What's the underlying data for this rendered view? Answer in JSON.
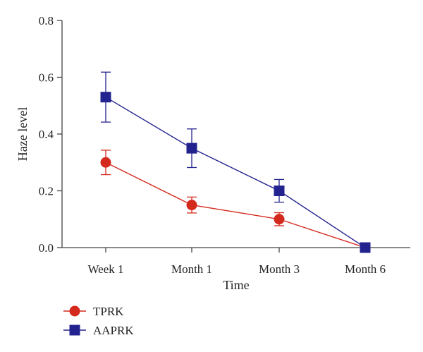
{
  "chart_data": {
    "type": "line",
    "title": "",
    "xlabel": "Time",
    "ylabel": "Haze level",
    "categories": [
      "Week 1",
      "Month 1",
      "Month 3",
      "Month 6"
    ],
    "ylim": [
      0,
      0.8
    ],
    "yticks": [
      "0.0",
      "0.2",
      "0.4",
      "0.6",
      "0.8"
    ],
    "grid": false,
    "legend_position": "bottom-left",
    "series": [
      {
        "name": "TPRK",
        "color": "#d42a1e",
        "marker": "circle",
        "values": [
          0.3,
          0.15,
          0.1,
          0.0
        ],
        "error": [
          0.043,
          0.028,
          0.023,
          0.0
        ]
      },
      {
        "name": "AAPRK",
        "color": "#23238f",
        "marker": "square",
        "values": [
          0.53,
          0.35,
          0.2,
          0.0
        ],
        "error": [
          0.088,
          0.068,
          0.04,
          0.0
        ]
      }
    ]
  }
}
